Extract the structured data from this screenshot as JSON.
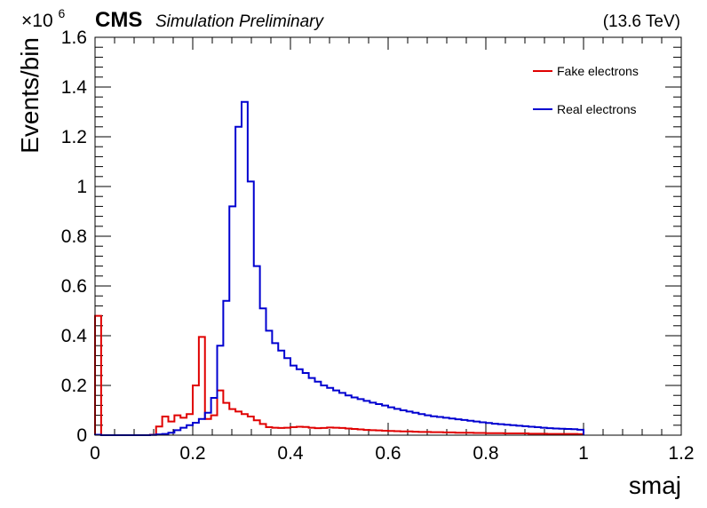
{
  "header": {
    "experiment": "CMS",
    "status": "Simulation Preliminary",
    "energy": "(13.6 TeV)"
  },
  "chart_data": {
    "type": "line",
    "subtype": "step-histogram",
    "xlabel": "smaj",
    "ylabel": "Events/bin",
    "y_multiplier_label": "×10",
    "y_multiplier_exponent": "6",
    "xlim": [
      0,
      1.2
    ],
    "ylim": [
      0,
      1.6
    ],
    "x_ticks": [
      "0",
      "0.2",
      "0.4",
      "0.6",
      "0.8",
      "1",
      "1.2"
    ],
    "y_ticks": [
      "0",
      "0.2",
      "0.4",
      "0.6",
      "0.8",
      "1",
      "1.2",
      "1.4",
      "1.6"
    ],
    "grid": false,
    "legend_position": "top-right",
    "bin_width": 0.0125,
    "x": [
      0.0,
      0.0125,
      0.025,
      0.0375,
      0.05,
      0.0625,
      0.075,
      0.0875,
      0.1,
      0.1125,
      0.125,
      0.1375,
      0.15,
      0.1625,
      0.175,
      0.1875,
      0.2,
      0.2125,
      0.225,
      0.2375,
      0.25,
      0.2625,
      0.275,
      0.2875,
      0.3,
      0.3125,
      0.325,
      0.3375,
      0.35,
      0.3625,
      0.375,
      0.3875,
      0.4,
      0.4125,
      0.425,
      0.4375,
      0.45,
      0.4625,
      0.475,
      0.4875,
      0.5,
      0.5125,
      0.525,
      0.5375,
      0.55,
      0.5625,
      0.575,
      0.5875,
      0.6,
      0.6125,
      0.625,
      0.6375,
      0.65,
      0.6625,
      0.675,
      0.6875,
      0.7,
      0.7125,
      0.725,
      0.7375,
      0.75,
      0.7625,
      0.775,
      0.7875,
      0.8,
      0.8125,
      0.825,
      0.8375,
      0.85,
      0.8625,
      0.875,
      0.8875,
      0.9,
      0.9125,
      0.925,
      0.9375,
      0.95,
      0.9625,
      0.975,
      0.9875
    ],
    "series": [
      {
        "name": "Fake electrons",
        "color": "#e00000",
        "values": [
          0.48,
          0.0,
          0.0,
          0.0,
          0.0,
          0.0,
          0.0,
          0.0,
          0.0,
          0.002,
          0.035,
          0.075,
          0.055,
          0.08,
          0.07,
          0.085,
          0.2,
          0.395,
          0.065,
          0.08,
          0.18,
          0.13,
          0.105,
          0.095,
          0.085,
          0.075,
          0.06,
          0.045,
          0.032,
          0.03,
          0.029,
          0.03,
          0.032,
          0.034,
          0.033,
          0.03,
          0.028,
          0.029,
          0.031,
          0.03,
          0.029,
          0.027,
          0.025,
          0.023,
          0.021,
          0.02,
          0.019,
          0.018,
          0.017,
          0.016,
          0.015,
          0.015,
          0.014,
          0.013,
          0.013,
          0.012,
          0.012,
          0.011,
          0.011,
          0.01,
          0.01,
          0.01,
          0.009,
          0.009,
          0.008,
          0.008,
          0.008,
          0.007,
          0.007,
          0.007,
          0.007,
          0.006,
          0.006,
          0.006,
          0.005,
          0.005,
          0.005,
          0.005,
          0.005,
          0.004
        ]
      },
      {
        "name": "Real electrons",
        "color": "#0000d0",
        "values": [
          0.002,
          0.0,
          0.0,
          0.0,
          0.0,
          0.0,
          0.0,
          0.0,
          0.0,
          0.001,
          0.003,
          0.005,
          0.01,
          0.02,
          0.03,
          0.04,
          0.05,
          0.065,
          0.09,
          0.15,
          0.36,
          0.54,
          0.92,
          1.24,
          1.34,
          1.02,
          0.68,
          0.51,
          0.42,
          0.37,
          0.34,
          0.31,
          0.28,
          0.265,
          0.25,
          0.23,
          0.215,
          0.2,
          0.19,
          0.18,
          0.17,
          0.16,
          0.152,
          0.145,
          0.138,
          0.131,
          0.125,
          0.119,
          0.112,
          0.106,
          0.1,
          0.095,
          0.09,
          0.085,
          0.08,
          0.076,
          0.073,
          0.07,
          0.067,
          0.064,
          0.061,
          0.058,
          0.055,
          0.052,
          0.049,
          0.046,
          0.044,
          0.042,
          0.04,
          0.038,
          0.036,
          0.034,
          0.032,
          0.03,
          0.028,
          0.027,
          0.026,
          0.025,
          0.024,
          0.022
        ]
      }
    ]
  }
}
